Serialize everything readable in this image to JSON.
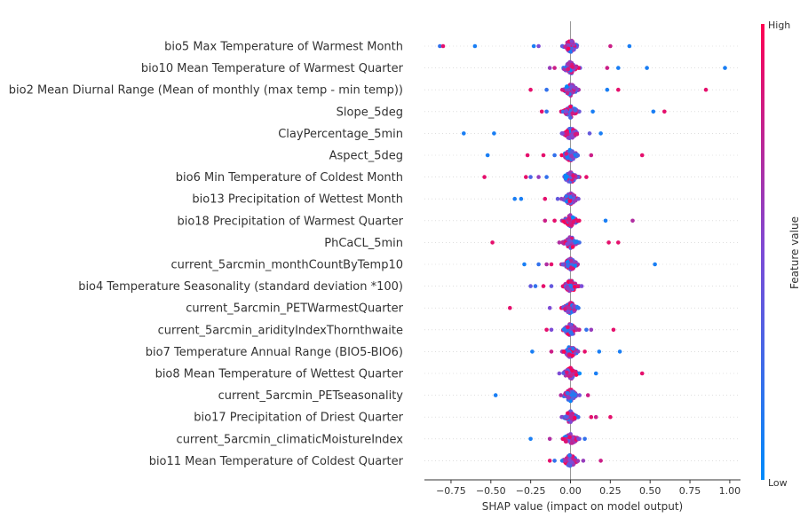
{
  "chart_data": {
    "type": "scatter",
    "subtype": "shap-beeswarm",
    "xlabel": "SHAP value (impact on model output)",
    "xlim": [
      -0.93,
      1.07
    ],
    "xticks": [
      -0.75,
      -0.5,
      -0.25,
      0.0,
      0.25,
      0.5,
      0.75,
      1.0
    ],
    "xtick_labels": [
      "−0.75",
      "−0.50",
      "−0.25",
      "0.00",
      "0.25",
      "0.50",
      "0.75",
      "1.00"
    ],
    "colorbar": {
      "title": "Feature value",
      "high_label": "High",
      "low_label": "Low",
      "low_color": "#008bfb",
      "high_color": "#ff0052"
    },
    "grid": false,
    "features": [
      {
        "name": "bio5 Max Temperature of Warmest Month",
        "outliers": [
          [
            -0.82,
            0.2
          ],
          [
            -0.8,
            0.9
          ],
          [
            -0.6,
            0.1
          ],
          [
            -0.23,
            0.1
          ],
          [
            -0.2,
            0.5
          ],
          [
            0.25,
            0.8
          ],
          [
            0.37,
            0.1
          ]
        ]
      },
      {
        "name": "bio10 Mean Temperature of Warmest Quarter",
        "outliers": [
          [
            -0.13,
            0.6
          ],
          [
            -0.1,
            0.8
          ],
          [
            0.23,
            0.8
          ],
          [
            0.3,
            0.1
          ],
          [
            0.48,
            0.1
          ],
          [
            0.97,
            0.1
          ]
        ]
      },
      {
        "name": "bio2 Mean Diurnal Range (Mean of monthly (max temp - min temp))",
        "outliers": [
          [
            -0.25,
            0.9
          ],
          [
            -0.15,
            0.2
          ],
          [
            0.23,
            0.1
          ],
          [
            0.3,
            0.9
          ],
          [
            0.85,
            0.9
          ]
        ]
      },
      {
        "name": "Slope_5deg",
        "outliers": [
          [
            -0.18,
            0.9
          ],
          [
            -0.15,
            0.2
          ],
          [
            -0.03,
            0.5
          ],
          [
            0.14,
            0.1
          ],
          [
            0.52,
            0.1
          ],
          [
            0.59,
            0.9
          ]
        ]
      },
      {
        "name": "ClayPercentage_5min",
        "outliers": [
          [
            -0.67,
            0.1
          ],
          [
            -0.48,
            0.1
          ],
          [
            -0.05,
            0.5
          ],
          [
            0.12,
            0.4
          ],
          [
            0.19,
            0.1
          ]
        ]
      },
      {
        "name": "Aspect_5deg",
        "outliers": [
          [
            -0.52,
            0.1
          ],
          [
            -0.27,
            0.9
          ],
          [
            -0.17,
            0.9
          ],
          [
            -0.1,
            0.2
          ],
          [
            0.13,
            0.8
          ],
          [
            0.45,
            0.9
          ]
        ]
      },
      {
        "name": "bio6 Min Temperature of Coldest Month",
        "outliers": [
          [
            -0.54,
            0.9
          ],
          [
            -0.28,
            0.9
          ],
          [
            -0.25,
            0.3
          ],
          [
            -0.2,
            0.6
          ],
          [
            -0.15,
            0.2
          ],
          [
            0.1,
            0.9
          ]
        ]
      },
      {
        "name": "bio13 Precipitation of Wettest Month",
        "outliers": [
          [
            -0.35,
            0.1
          ],
          [
            -0.31,
            0.1
          ],
          [
            -0.16,
            0.9
          ],
          [
            -0.08,
            0.4
          ],
          [
            0.05,
            0.5
          ]
        ]
      },
      {
        "name": "bio18 Precipitation of Warmest Quarter",
        "outliers": [
          [
            -0.16,
            0.8
          ],
          [
            -0.1,
            0.9
          ],
          [
            0.22,
            0.1
          ],
          [
            0.39,
            0.7
          ]
        ]
      },
      {
        "name": "PhCaCL_5min",
        "outliers": [
          [
            -0.49,
            0.9
          ],
          [
            -0.07,
            0.7
          ],
          [
            0.24,
            0.9
          ],
          [
            0.3,
            0.9
          ]
        ]
      },
      {
        "name": "current_5arcmin_monthCountByTemp10",
        "outliers": [
          [
            -0.29,
            0.1
          ],
          [
            -0.2,
            0.2
          ],
          [
            -0.15,
            0.7
          ],
          [
            -0.12,
            0.9
          ],
          [
            0.53,
            0.1
          ]
        ]
      },
      {
        "name": "bio4 Temperature Seasonality (standard deviation *100)",
        "outliers": [
          [
            -0.25,
            0.4
          ],
          [
            -0.22,
            0.2
          ],
          [
            -0.17,
            0.9
          ],
          [
            -0.12,
            0.4
          ],
          [
            0.07,
            0.5
          ]
        ]
      },
      {
        "name": "current_5arcmin_PETWarmestQuarter",
        "outliers": [
          [
            -0.38,
            0.9
          ],
          [
            -0.13,
            0.5
          ],
          [
            0.05,
            0.2
          ]
        ]
      },
      {
        "name": "current_5arcmin_aridityIndexThornthwaite",
        "outliers": [
          [
            -0.15,
            0.9
          ],
          [
            -0.12,
            0.5
          ],
          [
            0.1,
            0.2
          ],
          [
            0.13,
            0.6
          ],
          [
            0.27,
            0.9
          ]
        ]
      },
      {
        "name": "bio7 Temperature Annual Range (BIO5-BIO6)",
        "outliers": [
          [
            -0.24,
            0.1
          ],
          [
            -0.12,
            0.8
          ],
          [
            0.09,
            0.9
          ],
          [
            0.18,
            0.1
          ],
          [
            0.31,
            0.1
          ]
        ]
      },
      {
        "name": "bio8 Mean Temperature of Wettest Quarter",
        "outliers": [
          [
            -0.07,
            0.5
          ],
          [
            0.16,
            0.1
          ],
          [
            0.45,
            0.9
          ]
        ]
      },
      {
        "name": "current_5arcmin_PETseasonality",
        "outliers": [
          [
            -0.47,
            0.1
          ],
          [
            -0.06,
            0.7
          ],
          [
            0.11,
            0.8
          ]
        ]
      },
      {
        "name": "bio17 Precipitation of Driest Quarter",
        "outliers": [
          [
            -0.03,
            0.3
          ],
          [
            0.13,
            0.9
          ],
          [
            0.16,
            0.8
          ],
          [
            0.25,
            0.9
          ]
        ]
      },
      {
        "name": "current_5arcmin_climaticMoistureIndex",
        "outliers": [
          [
            -0.25,
            0.1
          ],
          [
            -0.13,
            0.7
          ],
          [
            0.05,
            0.5
          ],
          [
            0.09,
            0.2
          ]
        ]
      },
      {
        "name": "bio11 Mean Temperature of Coldest Quarter",
        "outliers": [
          [
            -0.13,
            0.9
          ],
          [
            -0.1,
            0.2
          ],
          [
            0.08,
            0.6
          ],
          [
            0.19,
            0.8
          ]
        ]
      }
    ]
  }
}
